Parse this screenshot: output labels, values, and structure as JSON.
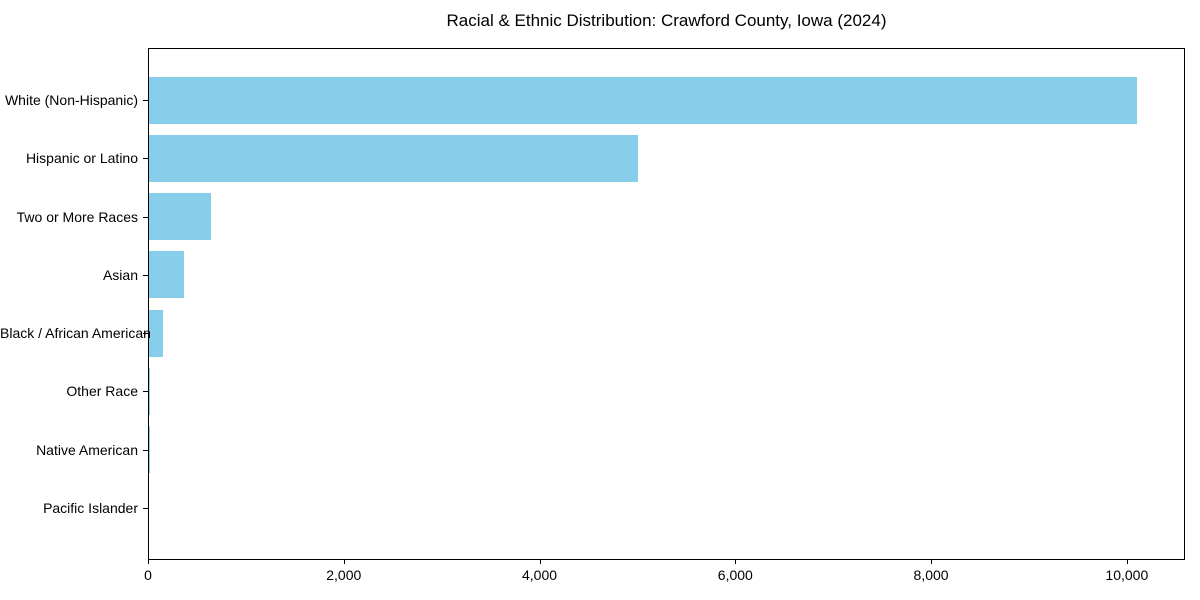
{
  "chart_data": {
    "type": "bar",
    "orientation": "horizontal",
    "title": "Racial & Ethnic Distribution: Crawford County, Iowa (2024)",
    "categories": [
      "White (Non-Hispanic)",
      "Hispanic or Latino",
      "Two or More Races",
      "Asian",
      "Black / African American",
      "Other Race",
      "Native American",
      "Pacific Islander"
    ],
    "values": [
      10090,
      5000,
      630,
      355,
      145,
      15,
      5,
      0
    ],
    "xlabel": "",
    "ylabel": "",
    "xlim": [
      0,
      10594
    ],
    "xticks": [
      0,
      2000,
      4000,
      6000,
      8000,
      10000
    ],
    "xtick_labels": [
      "0",
      "2,000",
      "4,000",
      "6,000",
      "8,000",
      "10,000"
    ],
    "grid": false,
    "legend": "none",
    "bar_color": "#87CEEB",
    "background_color": "#ffffff",
    "text_color": "#000000",
    "spine_color": "#000000"
  }
}
